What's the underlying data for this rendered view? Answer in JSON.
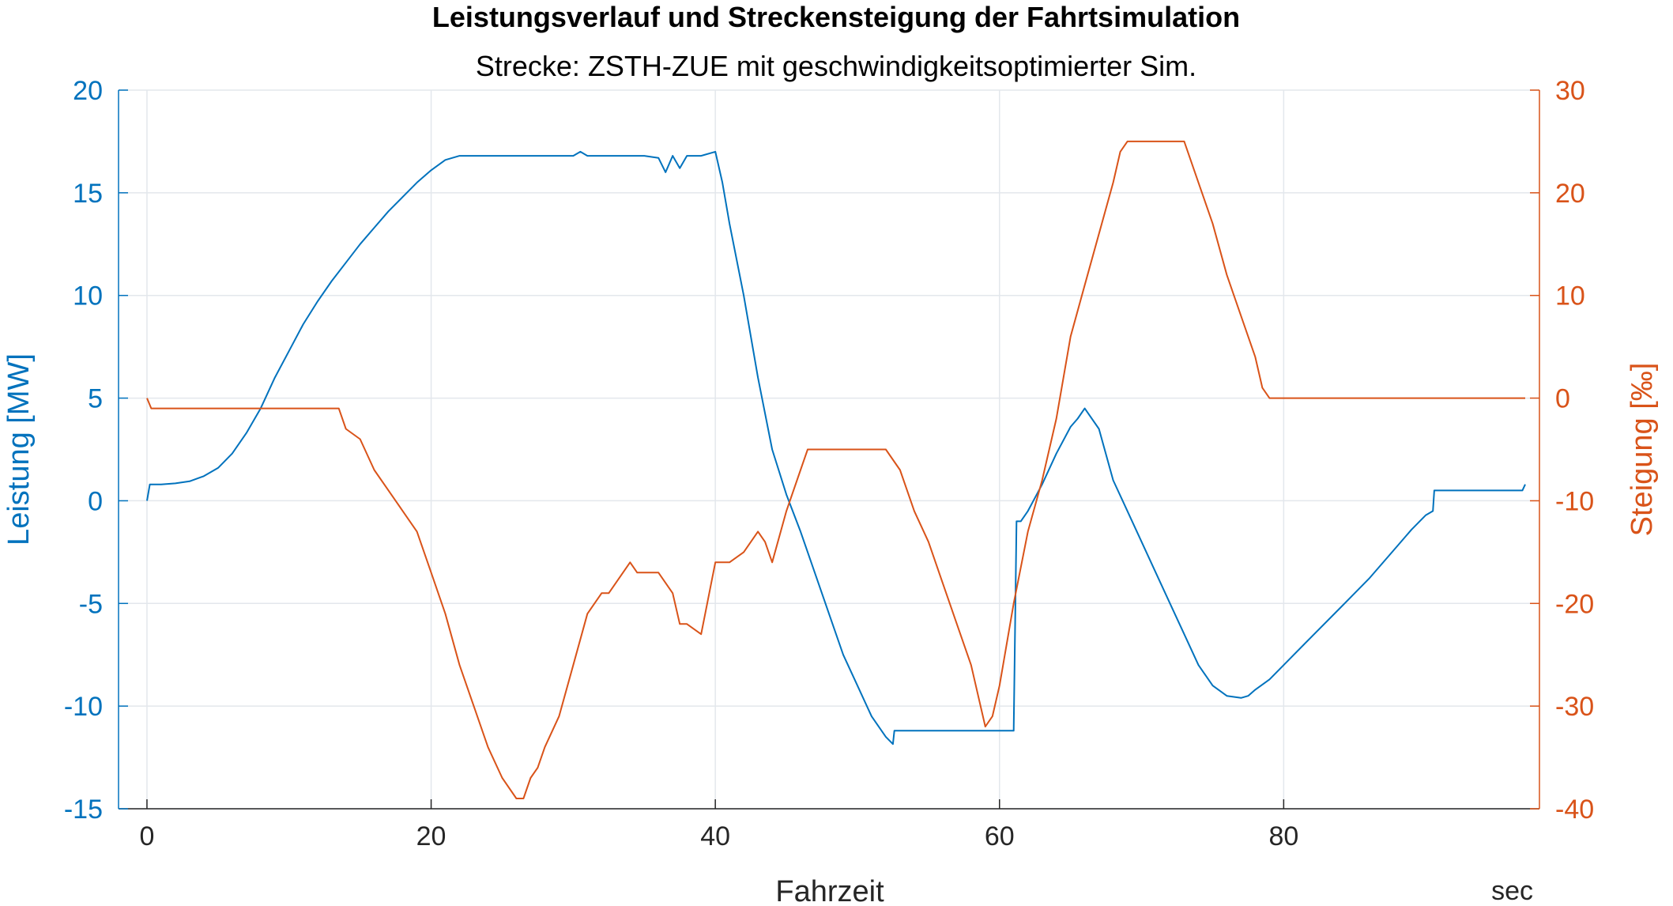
{
  "chart_data": {
    "type": "line",
    "title": "Leistungsverlauf und Streckensteigung der Fahrtsimulation",
    "subtitle": "Strecke: ZSTH-ZUE mit geschwindigkeitsoptimierter Sim.",
    "xlabel": "Fahrzeit",
    "xunit": "sec",
    "xlim": [
      -2,
      98
    ],
    "xticks": [
      0,
      20,
      40,
      60,
      80
    ],
    "xtick_labels": [
      "0",
      "20",
      "40",
      "60",
      "80"
    ],
    "grid": true,
    "left_axis": {
      "label": "Leistung [MW]",
      "color": "#0072BD",
      "ylim": [
        -15,
        20
      ],
      "ticks": [
        -15,
        -10,
        -5,
        0,
        5,
        10,
        15,
        20
      ],
      "tick_labels": [
        "-15",
        "-10",
        "-5",
        "0",
        "5",
        "10",
        "15",
        "20"
      ]
    },
    "right_axis": {
      "label": "Steigung [‰]",
      "color": "#D95319",
      "ylim": [
        -40,
        30
      ],
      "ticks": [
        -40,
        -30,
        -20,
        -10,
        0,
        10,
        20,
        30
      ],
      "tick_labels": [
        "-40",
        "-30",
        "-20",
        "-10",
        "0",
        "10",
        "20",
        "30"
      ]
    },
    "series": [
      {
        "axis": "left",
        "color": "#0072BD",
        "x": [
          0,
          0.2,
          1,
          2,
          3,
          4,
          5,
          6,
          7,
          8,
          9,
          10,
          11,
          12,
          13,
          14,
          15,
          16,
          17,
          18,
          19,
          20,
          21,
          22,
          22.5,
          23,
          24,
          25,
          26,
          27,
          28,
          29,
          30,
          30.5,
          31,
          32,
          33,
          34,
          35,
          36,
          36.5,
          37,
          37.5,
          38,
          38.5,
          39,
          40,
          40.5,
          41,
          42,
          43,
          44,
          45,
          46,
          47,
          48,
          49,
          50,
          51,
          52,
          52.5,
          52.6,
          55,
          58,
          61,
          61.2,
          61.5,
          62,
          63,
          64,
          65,
          65.5,
          66,
          67,
          68,
          69,
          70,
          71,
          72,
          73,
          74,
          75,
          76,
          77,
          77.5,
          78,
          79,
          80,
          82,
          84,
          86,
          88,
          89,
          90,
          90.5,
          90.6,
          92,
          94,
          96,
          96.8,
          97
        ],
        "y": [
          0,
          0.8,
          0.8,
          0.85,
          0.95,
          1.2,
          1.6,
          2.3,
          3.3,
          4.5,
          6,
          7.3,
          8.6,
          9.7,
          10.7,
          11.6,
          12.5,
          13.3,
          14.1,
          14.8,
          15.5,
          16.1,
          16.6,
          16.8,
          16.8,
          16.8,
          16.8,
          16.8,
          16.8,
          16.8,
          16.8,
          16.8,
          16.8,
          17,
          16.8,
          16.8,
          16.8,
          16.8,
          16.8,
          16.7,
          16,
          16.8,
          16.2,
          16.8,
          16.8,
          16.8,
          17,
          15.5,
          13.5,
          10,
          6,
          2.5,
          0.3,
          -1.5,
          -3.5,
          -5.5,
          -7.5,
          -9,
          -10.5,
          -11.5,
          -11.85,
          -11.2,
          -11.2,
          -11.2,
          -11.2,
          -1,
          -1,
          -0.5,
          0.8,
          2.3,
          3.6,
          4.0,
          4.5,
          3.5,
          1.0,
          -0.5,
          -2,
          -3.5,
          -5,
          -6.5,
          -8,
          -9,
          -9.5,
          -9.6,
          -9.5,
          -9.2,
          -8.7,
          -8,
          -6.6,
          -5.2,
          -3.8,
          -2.2,
          -1.4,
          -0.7,
          -0.5,
          0.5,
          0.5,
          0.5,
          0.5,
          0.5,
          0.8
        ]
      },
      {
        "axis": "right",
        "color": "#D95319",
        "x": [
          0,
          0.3,
          13.5,
          14,
          15,
          16,
          17,
          18,
          19,
          20,
          21,
          22,
          23,
          24,
          25,
          26,
          26.5,
          27,
          27.5,
          28,
          29,
          30,
          31,
          32,
          32.5,
          33,
          34,
          34.5,
          35,
          36,
          37,
          37.5,
          38,
          39,
          40,
          41,
          42,
          42.5,
          43,
          43.5,
          44,
          45,
          46,
          46.5,
          47,
          48,
          49,
          50,
          51,
          52,
          53,
          54,
          55,
          56,
          57,
          58,
          58.5,
          59,
          59.5,
          60,
          61,
          62,
          63,
          64,
          65,
          66,
          67,
          68,
          68.5,
          69,
          70,
          71,
          72,
          73,
          74,
          75,
          76,
          77,
          78,
          78.5,
          79,
          85,
          90,
          95,
          97
        ],
        "y": [
          0,
          -1,
          -1,
          -3,
          -4,
          -7,
          -9,
          -11,
          -13,
          -17,
          -21,
          -26,
          -30,
          -34,
          -37,
          -39,
          -39,
          -37,
          -36,
          -34,
          -31,
          -26,
          -21,
          -19,
          -19,
          -18,
          -16,
          -17,
          -17,
          -17,
          -19,
          -22,
          -22,
          -23,
          -16,
          -16,
          -15,
          -14,
          -13,
          -14,
          -16,
          -11,
          -7,
          -5,
          -5,
          -5,
          -5,
          -5,
          -5,
          -5,
          -7,
          -11,
          -14,
          -18,
          -22,
          -26,
          -29,
          -32,
          -31,
          -28,
          -20,
          -13,
          -8,
          -2,
          6,
          11,
          16,
          21,
          24,
          25,
          25,
          25,
          25,
          25,
          21,
          17,
          12,
          8,
          4,
          1,
          0,
          0,
          0,
          0,
          0
        ]
      }
    ]
  }
}
